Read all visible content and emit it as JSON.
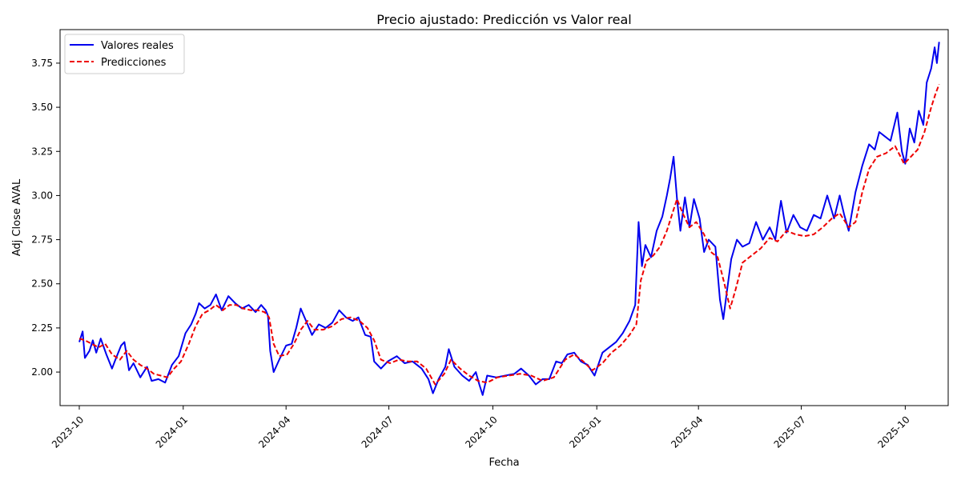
{
  "chart_data": {
    "type": "line",
    "title": "Precio ajustado: Predicción vs Valor real",
    "xlabel": "Fecha",
    "ylabel": "Adj Close AVAL",
    "xlim": [
      "2023-09-14",
      "2025-11-08"
    ],
    "ylim": [
      1.81,
      3.94
    ],
    "x_ticks": [
      "2023-10",
      "2024-01",
      "2024-04",
      "2024-07",
      "2024-10",
      "2025-01",
      "2025-04",
      "2025-07",
      "2025-10"
    ],
    "y_ticks": [
      2.0,
      2.25,
      2.5,
      2.75,
      3.0,
      3.25,
      3.5,
      3.75
    ],
    "y_tick_labels": [
      "2.00",
      "2.25",
      "2.50",
      "2.75",
      "3.00",
      "3.25",
      "3.50",
      "3.75"
    ],
    "grid": false,
    "legend_position": "upper-left",
    "series": [
      {
        "name": "Valores reales",
        "color": "#0000ee",
        "style": "solid",
        "points": [
          [
            "2023-10-01",
            2.17
          ],
          [
            "2023-10-04",
            2.23
          ],
          [
            "2023-10-06",
            2.08
          ],
          [
            "2023-10-10",
            2.12
          ],
          [
            "2023-10-13",
            2.18
          ],
          [
            "2023-10-16",
            2.11
          ],
          [
            "2023-10-20",
            2.19
          ],
          [
            "2023-10-25",
            2.1
          ],
          [
            "2023-10-30",
            2.02
          ],
          [
            "2023-11-02",
            2.07
          ],
          [
            "2023-11-07",
            2.15
          ],
          [
            "2023-11-10",
            2.17
          ],
          [
            "2023-11-14",
            2.01
          ],
          [
            "2023-11-18",
            2.05
          ],
          [
            "2023-11-24",
            1.97
          ],
          [
            "2023-11-30",
            2.03
          ],
          [
            "2023-12-04",
            1.95
          ],
          [
            "2023-12-10",
            1.96
          ],
          [
            "2023-12-16",
            1.94
          ],
          [
            "2023-12-22",
            2.04
          ],
          [
            "2023-12-28",
            2.09
          ],
          [
            "2024-01-03",
            2.22
          ],
          [
            "2024-01-08",
            2.27
          ],
          [
            "2024-01-12",
            2.33
          ],
          [
            "2024-01-15",
            2.39
          ],
          [
            "2024-01-20",
            2.36
          ],
          [
            "2024-01-25",
            2.38
          ],
          [
            "2024-01-30",
            2.44
          ],
          [
            "2024-02-04",
            2.35
          ],
          [
            "2024-02-10",
            2.43
          ],
          [
            "2024-02-16",
            2.39
          ],
          [
            "2024-02-22",
            2.36
          ],
          [
            "2024-02-28",
            2.38
          ],
          [
            "2024-03-05",
            2.34
          ],
          [
            "2024-03-10",
            2.38
          ],
          [
            "2024-03-14",
            2.35
          ],
          [
            "2024-03-16",
            2.32
          ],
          [
            "2024-03-18",
            2.12
          ],
          [
            "2024-03-21",
            2.0
          ],
          [
            "2024-03-26",
            2.07
          ],
          [
            "2024-04-01",
            2.15
          ],
          [
            "2024-04-06",
            2.16
          ],
          [
            "2024-04-10",
            2.25
          ],
          [
            "2024-04-14",
            2.36
          ],
          [
            "2024-04-18",
            2.3
          ],
          [
            "2024-04-24",
            2.21
          ],
          [
            "2024-04-30",
            2.27
          ],
          [
            "2024-05-06",
            2.25
          ],
          [
            "2024-05-12",
            2.28
          ],
          [
            "2024-05-18",
            2.35
          ],
          [
            "2024-05-24",
            2.31
          ],
          [
            "2024-05-30",
            2.29
          ],
          [
            "2024-06-04",
            2.31
          ],
          [
            "2024-06-10",
            2.21
          ],
          [
            "2024-06-15",
            2.2
          ],
          [
            "2024-06-18",
            2.06
          ],
          [
            "2024-06-24",
            2.02
          ],
          [
            "2024-06-30",
            2.06
          ],
          [
            "2024-07-08",
            2.09
          ],
          [
            "2024-07-15",
            2.05
          ],
          [
            "2024-07-22",
            2.06
          ],
          [
            "2024-07-30",
            2.02
          ],
          [
            "2024-08-05",
            1.96
          ],
          [
            "2024-08-09",
            1.88
          ],
          [
            "2024-08-14",
            1.96
          ],
          [
            "2024-08-20",
            2.03
          ],
          [
            "2024-08-23",
            2.13
          ],
          [
            "2024-08-28",
            2.03
          ],
          [
            "2024-09-04",
            1.98
          ],
          [
            "2024-09-10",
            1.95
          ],
          [
            "2024-09-16",
            2.0
          ],
          [
            "2024-09-19",
            1.93
          ],
          [
            "2024-09-22",
            1.87
          ],
          [
            "2024-09-26",
            1.98
          ],
          [
            "2024-10-04",
            1.97
          ],
          [
            "2024-10-12",
            1.98
          ],
          [
            "2024-10-20",
            1.99
          ],
          [
            "2024-10-26",
            2.02
          ],
          [
            "2024-11-02",
            1.98
          ],
          [
            "2024-11-08",
            1.93
          ],
          [
            "2024-11-14",
            1.96
          ],
          [
            "2024-11-20",
            1.96
          ],
          [
            "2024-11-26",
            2.06
          ],
          [
            "2024-12-01",
            2.05
          ],
          [
            "2024-12-06",
            2.1
          ],
          [
            "2024-12-12",
            2.11
          ],
          [
            "2024-12-18",
            2.06
          ],
          [
            "2024-12-24",
            2.04
          ],
          [
            "2024-12-30",
            1.98
          ],
          [
            "2025-01-06",
            2.11
          ],
          [
            "2025-01-12",
            2.14
          ],
          [
            "2025-01-18",
            2.17
          ],
          [
            "2025-01-24",
            2.22
          ],
          [
            "2025-01-30",
            2.29
          ],
          [
            "2025-02-04",
            2.38
          ],
          [
            "2025-02-07",
            2.85
          ],
          [
            "2025-02-10",
            2.6
          ],
          [
            "2025-02-13",
            2.72
          ],
          [
            "2025-02-18",
            2.65
          ],
          [
            "2025-02-23",
            2.8
          ],
          [
            "2025-02-28",
            2.88
          ],
          [
            "2025-03-04",
            3.0
          ],
          [
            "2025-03-07",
            3.1
          ],
          [
            "2025-03-10",
            3.22
          ],
          [
            "2025-03-13",
            2.98
          ],
          [
            "2025-03-16",
            2.8
          ],
          [
            "2025-03-20",
            2.99
          ],
          [
            "2025-03-24",
            2.82
          ],
          [
            "2025-03-28",
            2.98
          ],
          [
            "2025-04-02",
            2.87
          ],
          [
            "2025-04-06",
            2.68
          ],
          [
            "2025-04-10",
            2.75
          ],
          [
            "2025-04-16",
            2.71
          ],
          [
            "2025-04-20",
            2.41
          ],
          [
            "2025-04-23",
            2.3
          ],
          [
            "2025-04-26",
            2.45
          ],
          [
            "2025-04-30",
            2.64
          ],
          [
            "2025-05-05",
            2.75
          ],
          [
            "2025-05-10",
            2.71
          ],
          [
            "2025-05-16",
            2.73
          ],
          [
            "2025-05-22",
            2.85
          ],
          [
            "2025-05-28",
            2.75
          ],
          [
            "2025-06-03",
            2.82
          ],
          [
            "2025-06-08",
            2.75
          ],
          [
            "2025-06-13",
            2.97
          ],
          [
            "2025-06-18",
            2.79
          ],
          [
            "2025-06-24",
            2.89
          ],
          [
            "2025-06-30",
            2.82
          ],
          [
            "2025-07-06",
            2.8
          ],
          [
            "2025-07-12",
            2.89
          ],
          [
            "2025-07-18",
            2.87
          ],
          [
            "2025-07-24",
            3.0
          ],
          [
            "2025-07-30",
            2.87
          ],
          [
            "2025-08-04",
            3.0
          ],
          [
            "2025-08-08",
            2.89
          ],
          [
            "2025-08-12",
            2.8
          ],
          [
            "2025-08-18",
            3.02
          ],
          [
            "2025-08-24",
            3.17
          ],
          [
            "2025-08-30",
            3.29
          ],
          [
            "2025-09-04",
            3.26
          ],
          [
            "2025-09-08",
            3.36
          ],
          [
            "2025-09-12",
            3.34
          ],
          [
            "2025-09-18",
            3.31
          ],
          [
            "2025-09-24",
            3.47
          ],
          [
            "2025-09-28",
            3.25
          ],
          [
            "2025-10-01",
            3.18
          ],
          [
            "2025-10-05",
            3.38
          ],
          [
            "2025-10-09",
            3.3
          ],
          [
            "2025-10-13",
            3.48
          ],
          [
            "2025-10-17",
            3.4
          ],
          [
            "2025-10-20",
            3.64
          ],
          [
            "2025-10-24",
            3.72
          ],
          [
            "2025-10-27",
            3.84
          ],
          [
            "2025-10-29",
            3.75
          ],
          [
            "2025-10-31",
            3.87
          ]
        ]
      },
      {
        "name": "Predicciones",
        "color": "#ee0000",
        "style": "dashed",
        "points": [
          [
            "2023-10-01",
            2.19
          ],
          [
            "2023-10-06",
            2.18
          ],
          [
            "2023-10-12",
            2.16
          ],
          [
            "2023-10-18",
            2.14
          ],
          [
            "2023-10-24",
            2.16
          ],
          [
            "2023-10-30",
            2.1
          ],
          [
            "2023-11-06",
            2.07
          ],
          [
            "2023-11-12",
            2.12
          ],
          [
            "2023-11-18",
            2.07
          ],
          [
            "2023-11-24",
            2.04
          ],
          [
            "2023-11-30",
            2.02
          ],
          [
            "2023-12-06",
            1.99
          ],
          [
            "2023-12-12",
            1.98
          ],
          [
            "2023-12-18",
            1.97
          ],
          [
            "2023-12-24",
            2.02
          ],
          [
            "2023-12-30",
            2.06
          ],
          [
            "2024-01-06",
            2.16
          ],
          [
            "2024-01-12",
            2.26
          ],
          [
            "2024-01-18",
            2.33
          ],
          [
            "2024-01-24",
            2.35
          ],
          [
            "2024-01-30",
            2.38
          ],
          [
            "2024-02-05",
            2.35
          ],
          [
            "2024-02-11",
            2.38
          ],
          [
            "2024-02-17",
            2.38
          ],
          [
            "2024-02-23",
            2.36
          ],
          [
            "2024-03-01",
            2.35
          ],
          [
            "2024-03-07",
            2.35
          ],
          [
            "2024-03-13",
            2.34
          ],
          [
            "2024-03-17",
            2.31
          ],
          [
            "2024-03-21",
            2.16
          ],
          [
            "2024-03-26",
            2.09
          ],
          [
            "2024-04-02",
            2.1
          ],
          [
            "2024-04-08",
            2.16
          ],
          [
            "2024-04-14",
            2.24
          ],
          [
            "2024-04-20",
            2.29
          ],
          [
            "2024-04-26",
            2.24
          ],
          [
            "2024-05-04",
            2.24
          ],
          [
            "2024-05-12",
            2.26
          ],
          [
            "2024-05-20",
            2.3
          ],
          [
            "2024-05-28",
            2.31
          ],
          [
            "2024-06-05",
            2.29
          ],
          [
            "2024-06-12",
            2.25
          ],
          [
            "2024-06-18",
            2.18
          ],
          [
            "2024-06-24",
            2.07
          ],
          [
            "2024-07-02",
            2.05
          ],
          [
            "2024-07-10",
            2.07
          ],
          [
            "2024-07-18",
            2.06
          ],
          [
            "2024-07-26",
            2.06
          ],
          [
            "2024-08-03",
            2.02
          ],
          [
            "2024-08-11",
            1.93
          ],
          [
            "2024-08-19",
            1.99
          ],
          [
            "2024-08-25",
            2.07
          ],
          [
            "2024-09-02",
            2.02
          ],
          [
            "2024-09-10",
            1.98
          ],
          [
            "2024-09-18",
            1.95
          ],
          [
            "2024-09-26",
            1.94
          ],
          [
            "2024-10-05",
            1.97
          ],
          [
            "2024-10-15",
            1.98
          ],
          [
            "2024-10-25",
            1.99
          ],
          [
            "2024-11-04",
            1.98
          ],
          [
            "2024-11-14",
            1.95
          ],
          [
            "2024-11-24",
            1.97
          ],
          [
            "2024-12-04",
            2.07
          ],
          [
            "2024-12-12",
            2.1
          ],
          [
            "2024-12-20",
            2.06
          ],
          [
            "2024-12-28",
            2.01
          ],
          [
            "2025-01-06",
            2.05
          ],
          [
            "2025-01-14",
            2.11
          ],
          [
            "2025-01-22",
            2.15
          ],
          [
            "2025-01-30",
            2.21
          ],
          [
            "2025-02-05",
            2.27
          ],
          [
            "2025-02-09",
            2.52
          ],
          [
            "2025-02-14",
            2.63
          ],
          [
            "2025-02-20",
            2.66
          ],
          [
            "2025-02-26",
            2.71
          ],
          [
            "2025-03-04",
            2.8
          ],
          [
            "2025-03-10",
            2.92
          ],
          [
            "2025-03-13",
            2.98
          ],
          [
            "2025-03-18",
            2.9
          ],
          [
            "2025-03-24",
            2.82
          ],
          [
            "2025-03-30",
            2.85
          ],
          [
            "2025-04-06",
            2.78
          ],
          [
            "2025-04-12",
            2.68
          ],
          [
            "2025-04-18",
            2.65
          ],
          [
            "2025-04-24",
            2.5
          ],
          [
            "2025-04-29",
            2.36
          ],
          [
            "2025-05-04",
            2.47
          ],
          [
            "2025-05-10",
            2.62
          ],
          [
            "2025-05-18",
            2.66
          ],
          [
            "2025-05-26",
            2.7
          ],
          [
            "2025-06-03",
            2.76
          ],
          [
            "2025-06-10",
            2.74
          ],
          [
            "2025-06-18",
            2.8
          ],
          [
            "2025-06-26",
            2.78
          ],
          [
            "2025-07-04",
            2.77
          ],
          [
            "2025-07-12",
            2.78
          ],
          [
            "2025-07-20",
            2.82
          ],
          [
            "2025-07-28",
            2.87
          ],
          [
            "2025-08-04",
            2.9
          ],
          [
            "2025-08-12",
            2.82
          ],
          [
            "2025-08-18",
            2.85
          ],
          [
            "2025-08-24",
            3.02
          ],
          [
            "2025-08-30",
            3.15
          ],
          [
            "2025-09-06",
            3.22
          ],
          [
            "2025-09-14",
            3.24
          ],
          [
            "2025-09-22",
            3.28
          ],
          [
            "2025-09-30",
            3.18
          ],
          [
            "2025-10-06",
            3.22
          ],
          [
            "2025-10-12",
            3.26
          ],
          [
            "2025-10-18",
            3.36
          ],
          [
            "2025-10-24",
            3.5
          ],
          [
            "2025-10-28",
            3.58
          ],
          [
            "2025-10-31",
            3.63
          ]
        ]
      }
    ]
  }
}
